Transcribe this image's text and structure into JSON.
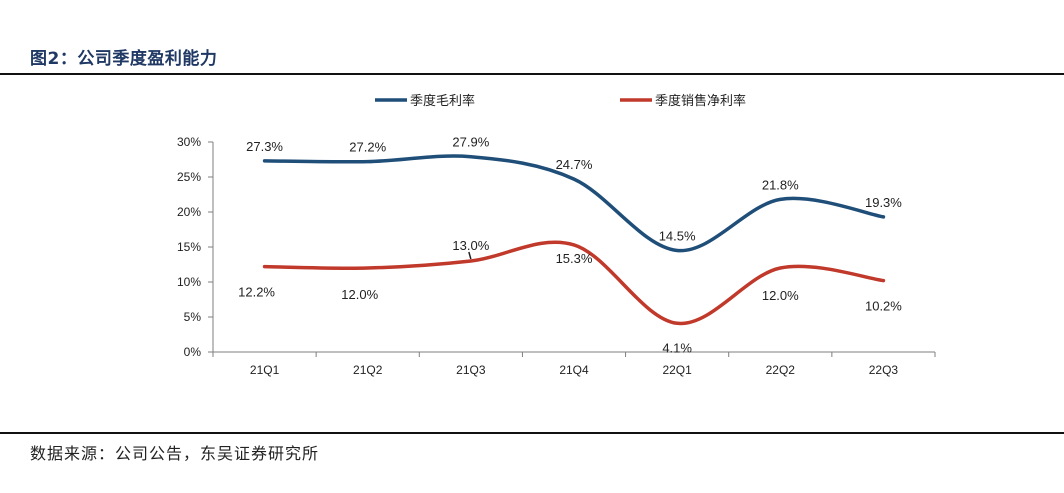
{
  "figure": {
    "title": "图2：公司季度盈利能力",
    "source": "数据来源：公司公告，东吴证券研究所"
  },
  "chart_data": {
    "type": "line",
    "categories": [
      "21Q1",
      "21Q2",
      "21Q3",
      "21Q4",
      "22Q1",
      "22Q2",
      "22Q3"
    ],
    "ylim": [
      0,
      30
    ],
    "yticks": [
      "0%",
      "5%",
      "10%",
      "15%",
      "20%",
      "25%",
      "30%"
    ],
    "grid": false,
    "legend_position": "top",
    "series": [
      {
        "name": "季度毛利率",
        "color": "#1f4e79",
        "values": [
          27.3,
          27.2,
          27.9,
          24.7,
          14.5,
          21.8,
          19.3
        ],
        "labels": [
          "27.3%",
          "27.2%",
          "27.9%",
          "24.7%",
          "14.5%",
          "21.8%",
          "19.3%"
        ]
      },
      {
        "name": "季度销售净利率",
        "color": "#c0392b",
        "values": [
          12.2,
          12.0,
          13.0,
          15.3,
          4.1,
          12.0,
          10.2
        ],
        "labels": [
          "12.2%",
          "12.0%",
          "13.0%",
          "15.3%",
          "4.1%",
          "12.0%",
          "10.2%"
        ]
      }
    ]
  }
}
